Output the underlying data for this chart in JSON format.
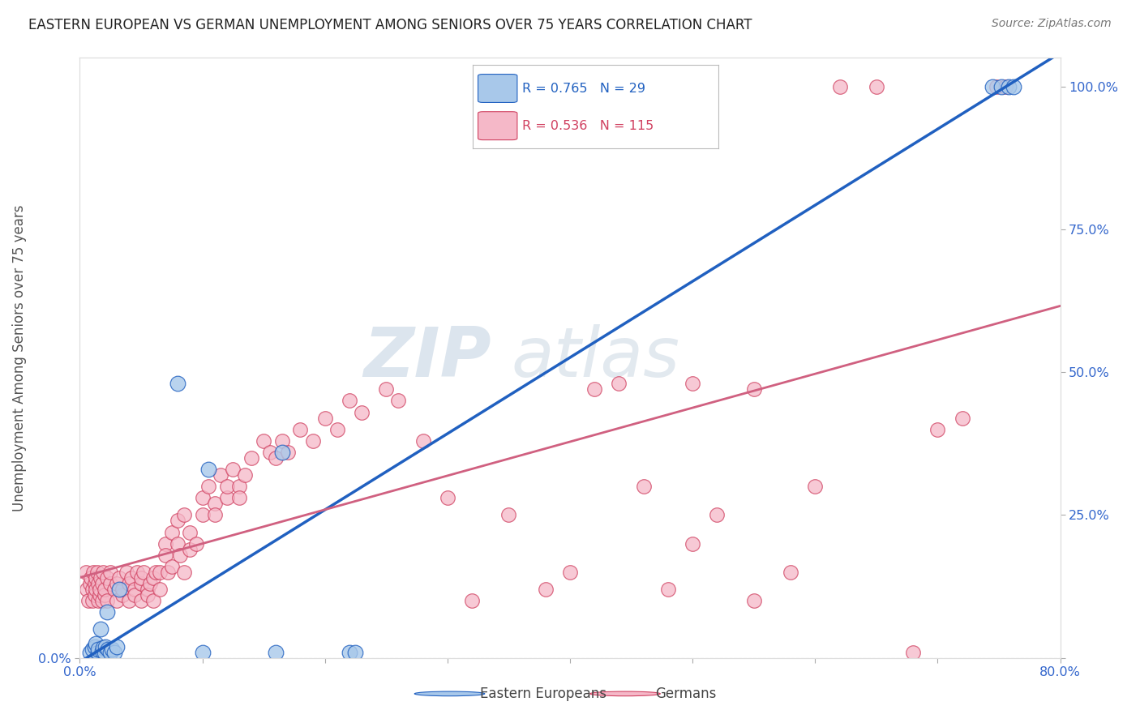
{
  "title": "EASTERN EUROPEAN VS GERMAN UNEMPLOYMENT AMONG SENIORS OVER 75 YEARS CORRELATION CHART",
  "source": "Source: ZipAtlas.com",
  "ylabel": "Unemployment Among Seniors over 75 years",
  "xlim": [
    0.0,
    0.8
  ],
  "ylim": [
    0.0,
    1.05
  ],
  "xtick_positions": [
    0.0,
    0.1,
    0.2,
    0.3,
    0.4,
    0.5,
    0.6,
    0.7,
    0.8
  ],
  "xticklabels": [
    "0.0%",
    "",
    "",
    "",
    "",
    "",
    "",
    "",
    "80.0%"
  ],
  "ytick_left_positions": [
    0.0
  ],
  "ytick_left_labels": [
    "0.0%"
  ],
  "ytick_right_positions": [
    0.0,
    0.25,
    0.5,
    0.75,
    1.0
  ],
  "ytick_right_labels": [
    "",
    "25.0%",
    "50.0%",
    "75.0%",
    "100.0%"
  ],
  "grid_color": "#cccccc",
  "bg_color": "#ffffff",
  "ee_face_color": "#a8c8ea",
  "ee_edge_color": "#2060c0",
  "de_face_color": "#f5b8c8",
  "de_edge_color": "#d04060",
  "ee_line_color": "#2060c0",
  "de_line_color": "#d06080",
  "R_ee": 0.765,
  "N_ee": 29,
  "R_de": 0.536,
  "N_de": 115,
  "legend_ee": "Eastern Europeans",
  "legend_de": "Germans",
  "watermark_zip": "ZIP",
  "watermark_atlas": "atlas",
  "tick_color": "#3366cc",
  "label_color": "#555555",
  "ee_x": [
    0.008,
    0.01,
    0.012,
    0.013,
    0.015,
    0.015,
    0.017,
    0.018,
    0.019,
    0.02,
    0.021,
    0.022,
    0.023,
    0.025,
    0.026,
    0.028,
    0.03,
    0.032,
    0.08,
    0.1,
    0.105,
    0.16,
    0.165,
    0.22,
    0.225,
    0.745,
    0.752,
    0.758,
    0.762
  ],
  "ee_y": [
    0.01,
    0.015,
    0.02,
    0.025,
    0.01,
    0.015,
    0.05,
    0.012,
    0.018,
    0.01,
    0.02,
    0.08,
    0.015,
    0.01,
    0.015,
    0.01,
    0.02,
    0.12,
    0.48,
    0.01,
    0.33,
    0.01,
    0.36,
    0.01,
    0.01,
    1.0,
    1.0,
    1.0,
    1.0
  ],
  "de_x": [
    0.005,
    0.006,
    0.007,
    0.008,
    0.009,
    0.01,
    0.01,
    0.011,
    0.012,
    0.012,
    0.013,
    0.013,
    0.014,
    0.015,
    0.015,
    0.016,
    0.016,
    0.017,
    0.018,
    0.018,
    0.019,
    0.02,
    0.02,
    0.022,
    0.022,
    0.025,
    0.025,
    0.028,
    0.03,
    0.03,
    0.032,
    0.035,
    0.035,
    0.038,
    0.04,
    0.04,
    0.042,
    0.045,
    0.045,
    0.047,
    0.05,
    0.05,
    0.05,
    0.052,
    0.055,
    0.055,
    0.057,
    0.06,
    0.06,
    0.062,
    0.065,
    0.065,
    0.07,
    0.07,
    0.072,
    0.075,
    0.075,
    0.08,
    0.08,
    0.082,
    0.085,
    0.085,
    0.09,
    0.09,
    0.095,
    0.1,
    0.1,
    0.105,
    0.11,
    0.11,
    0.115,
    0.12,
    0.12,
    0.125,
    0.13,
    0.13,
    0.135,
    0.14,
    0.15,
    0.155,
    0.16,
    0.165,
    0.17,
    0.18,
    0.19,
    0.2,
    0.21,
    0.22,
    0.23,
    0.25,
    0.26,
    0.28,
    0.3,
    0.32,
    0.35,
    0.38,
    0.4,
    0.42,
    0.44,
    0.46,
    0.48,
    0.5,
    0.52,
    0.55,
    0.58,
    0.6,
    0.62,
    0.65,
    0.68,
    0.7,
    0.72,
    0.748,
    0.755,
    0.5,
    0.55
  ],
  "de_y": [
    0.15,
    0.12,
    0.1,
    0.13,
    0.14,
    0.12,
    0.1,
    0.15,
    0.13,
    0.11,
    0.14,
    0.12,
    0.15,
    0.1,
    0.13,
    0.11,
    0.12,
    0.14,
    0.1,
    0.13,
    0.15,
    0.11,
    0.12,
    0.1,
    0.14,
    0.13,
    0.15,
    0.12,
    0.1,
    0.13,
    0.14,
    0.11,
    0.12,
    0.15,
    0.1,
    0.13,
    0.14,
    0.12,
    0.11,
    0.15,
    0.13,
    0.1,
    0.14,
    0.15,
    0.12,
    0.11,
    0.13,
    0.1,
    0.14,
    0.15,
    0.12,
    0.15,
    0.2,
    0.18,
    0.15,
    0.22,
    0.16,
    0.24,
    0.2,
    0.18,
    0.25,
    0.15,
    0.22,
    0.19,
    0.2,
    0.25,
    0.28,
    0.3,
    0.27,
    0.25,
    0.32,
    0.28,
    0.3,
    0.33,
    0.3,
    0.28,
    0.32,
    0.35,
    0.38,
    0.36,
    0.35,
    0.38,
    0.36,
    0.4,
    0.38,
    0.42,
    0.4,
    0.45,
    0.43,
    0.47,
    0.45,
    0.38,
    0.28,
    0.1,
    0.25,
    0.12,
    0.15,
    0.47,
    0.48,
    0.3,
    0.12,
    0.2,
    0.25,
    0.1,
    0.15,
    0.3,
    1.0,
    1.0,
    0.01,
    0.4,
    0.42,
    1.0,
    1.0,
    0.48,
    0.47
  ]
}
